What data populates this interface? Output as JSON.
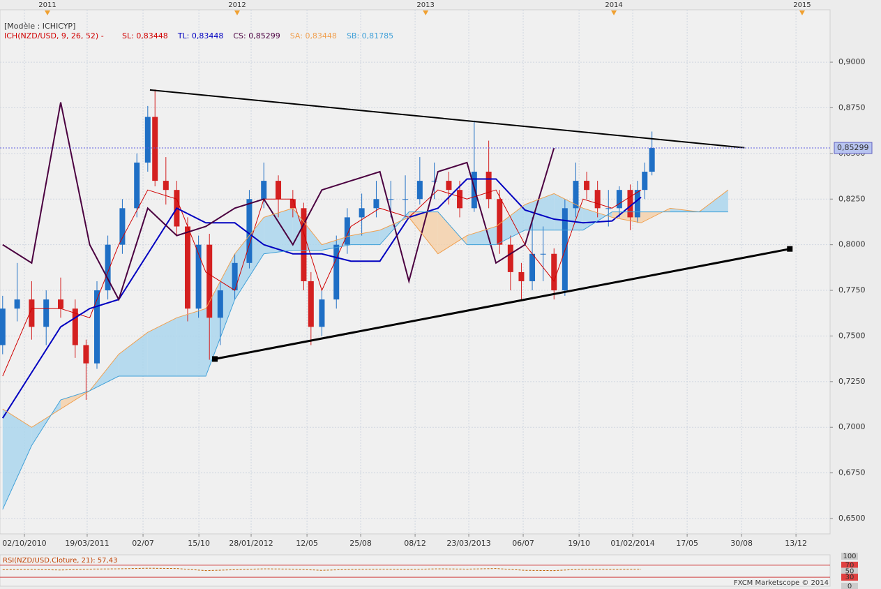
{
  "chart_data": {
    "type": "candlestick",
    "model": "[Modèle : ICHICYP]",
    "indicator": "ICH(NZD/USD, 9, 26, 52) -",
    "up_color": "#1f6fc5",
    "down_color": "#d42020",
    "xlim": [
      -6.73,
      222.1
    ],
    "ylim": [
      0.6416,
      0.9287
    ],
    "yticks": [
      {
        "value": 0.65,
        "label": "0,6500"
      },
      {
        "value": 0.675,
        "label": "0,6750"
      },
      {
        "value": 0.7,
        "label": "0,7000"
      },
      {
        "value": 0.725,
        "label": "0,7250"
      },
      {
        "value": 0.75,
        "label": "0,7500"
      },
      {
        "value": 0.775,
        "label": "0,7750"
      },
      {
        "value": 0.8,
        "label": "0,8000"
      },
      {
        "value": 0.825,
        "label": "0,8250"
      },
      {
        "value": 0.85,
        "label": "0,8500"
      },
      {
        "value": 0.875,
        "label": "0,8750"
      },
      {
        "value": 0.9,
        "label": "0,9000"
      }
    ],
    "xticks": [
      {
        "value": 0,
        "label": "02/10/2010"
      },
      {
        "value": 17.3,
        "label": "19/03/2011"
      },
      {
        "value": 32.7,
        "label": "02/07"
      },
      {
        "value": 48.1,
        "label": "15/10"
      },
      {
        "value": 62.5,
        "label": "28/01/2012"
      },
      {
        "value": 77.9,
        "label": "12/05"
      },
      {
        "value": 92.7,
        "label": "25/08"
      },
      {
        "value": 107.7,
        "label": "08/12"
      },
      {
        "value": 122.5,
        "label": "23/03/2013"
      },
      {
        "value": 137.5,
        "label": "06/07"
      },
      {
        "value": 152.9,
        "label": "19/10"
      },
      {
        "value": 167.7,
        "label": "01/02/2014"
      },
      {
        "value": 182.7,
        "label": "17/05"
      },
      {
        "value": 197.7,
        "label": "30/08"
      },
      {
        "value": 212.7,
        "label": "13/12"
      }
    ],
    "top_ticks": [
      {
        "value": 6.35,
        "label": "2011"
      },
      {
        "value": 58.65,
        "label": "2012"
      },
      {
        "value": 110.6,
        "label": "2013"
      },
      {
        "value": 162.5,
        "label": "2014"
      },
      {
        "value": 214.4,
        "label": "2015"
      }
    ],
    "grid": true,
    "x": [
      -6,
      -2,
      2,
      6,
      10,
      14,
      17,
      20,
      23,
      27,
      31,
      34,
      36,
      39,
      42,
      45,
      48,
      51,
      54,
      58,
      62,
      66,
      70,
      74,
      77,
      79,
      82,
      86,
      89,
      93,
      97,
      101,
      105,
      109,
      113,
      117,
      120,
      124,
      128,
      131,
      134,
      137,
      140,
      143,
      146,
      149,
      152,
      155,
      158,
      161,
      164,
      167,
      169,
      171,
      173
    ],
    "open": [
      0.745,
      0.765,
      0.77,
      0.755,
      0.77,
      0.765,
      0.745,
      0.735,
      0.775,
      0.8,
      0.82,
      0.845,
      0.87,
      0.835,
      0.83,
      0.81,
      0.765,
      0.8,
      0.76,
      0.775,
      0.79,
      0.825,
      0.835,
      0.825,
      0.82,
      0.78,
      0.755,
      0.77,
      0.8,
      0.815,
      0.82,
      0.825,
      0.825,
      0.825,
      0.835,
      0.835,
      0.83,
      0.82,
      0.84,
      0.825,
      0.8,
      0.785,
      0.78,
      0.795,
      0.795,
      0.775,
      0.82,
      0.835,
      0.83,
      0.82,
      0.82,
      0.83,
      0.815,
      0.83,
      0.84
    ],
    "high": [
      0.772,
      0.79,
      0.78,
      0.775,
      0.782,
      0.77,
      0.748,
      0.78,
      0.805,
      0.825,
      0.85,
      0.876,
      0.885,
      0.848,
      0.835,
      0.815,
      0.805,
      0.806,
      0.78,
      0.795,
      0.83,
      0.845,
      0.838,
      0.83,
      0.823,
      0.785,
      0.775,
      0.805,
      0.82,
      0.828,
      0.835,
      0.835,
      0.838,
      0.848,
      0.845,
      0.84,
      0.835,
      0.868,
      0.857,
      0.83,
      0.805,
      0.79,
      0.815,
      0.81,
      0.798,
      0.825,
      0.845,
      0.84,
      0.835,
      0.83,
      0.832,
      0.833,
      0.835,
      0.845,
      0.862
    ],
    "low": [
      0.74,
      0.758,
      0.748,
      0.745,
      0.76,
      0.738,
      0.715,
      0.732,
      0.77,
      0.795,
      0.815,
      0.84,
      0.832,
      0.822,
      0.805,
      0.758,
      0.76,
      0.737,
      0.745,
      0.77,
      0.787,
      0.82,
      0.815,
      0.815,
      0.775,
      0.745,
      0.75,
      0.765,
      0.795,
      0.805,
      0.815,
      0.815,
      0.815,
      0.822,
      0.825,
      0.822,
      0.815,
      0.818,
      0.82,
      0.795,
      0.775,
      0.77,
      0.775,
      0.78,
      0.77,
      0.772,
      0.815,
      0.825,
      0.815,
      0.81,
      0.815,
      0.808,
      0.812,
      0.825,
      0.838
    ],
    "close": [
      0.765,
      0.77,
      0.755,
      0.77,
      0.765,
      0.745,
      0.735,
      0.775,
      0.8,
      0.82,
      0.845,
      0.87,
      0.835,
      0.83,
      0.81,
      0.765,
      0.8,
      0.76,
      0.775,
      0.79,
      0.825,
      0.835,
      0.825,
      0.82,
      0.78,
      0.755,
      0.77,
      0.8,
      0.815,
      0.82,
      0.825,
      0.825,
      0.825,
      0.835,
      0.835,
      0.83,
      0.82,
      0.84,
      0.825,
      0.8,
      0.785,
      0.78,
      0.795,
      0.795,
      0.775,
      0.82,
      0.835,
      0.83,
      0.82,
      0.82,
      0.83,
      0.815,
      0.83,
      0.84,
      0.853
    ],
    "lines": {
      "x": [
        -6,
        2,
        10,
        18,
        26,
        34,
        42,
        50,
        58,
        66,
        74,
        82,
        90,
        98,
        106,
        114,
        122,
        130,
        138,
        146,
        154,
        162,
        170,
        178,
        186,
        194
      ],
      "series": [
        {
          "label": "SL: 0,83448",
          "color": "#d00000",
          "width": 1,
          "values": [
            0.728,
            0.765,
            0.765,
            0.76,
            0.8,
            0.83,
            0.825,
            0.785,
            0.775,
            0.825,
            0.825,
            0.775,
            0.81,
            0.82,
            0.815,
            0.83,
            0.825,
            0.83,
            0.8,
            0.78,
            0.825,
            0.82,
            0.83,
            null,
            null,
            null
          ]
        },
        {
          "label": "TL: 0,83448",
          "color": "#0000c0",
          "width": 2,
          "values": [
            0.705,
            0.73,
            0.755,
            0.765,
            0.77,
            0.795,
            0.82,
            0.812,
            0.812,
            0.8,
            0.795,
            0.795,
            0.791,
            0.791,
            0.815,
            0.82,
            0.836,
            0.836,
            0.819,
            0.814,
            0.812,
            0.813,
            0.826,
            null,
            null,
            null
          ]
        },
        {
          "label": "CS: 0,85299",
          "color": "#4b0040",
          "width": 2,
          "values": [
            0.8,
            0.79,
            0.878,
            0.8,
            0.77,
            0.82,
            0.805,
            0.81,
            0.82,
            0.825,
            0.8,
            0.83,
            0.835,
            0.84,
            0.78,
            0.84,
            0.845,
            0.79,
            0.8,
            0.853,
            null,
            null,
            null,
            null,
            null,
            null
          ]
        },
        {
          "label": "SA: 0,83448",
          "color": "#f0a050",
          "width": 1,
          "values": [
            0.71,
            0.7,
            0.71,
            0.72,
            0.74,
            0.752,
            0.76,
            0.765,
            0.795,
            0.815,
            0.82,
            0.8,
            0.805,
            0.808,
            0.815,
            0.795,
            0.805,
            0.81,
            0.822,
            0.828,
            0.82,
            0.815,
            0.812,
            0.82,
            0.818,
            0.83
          ]
        },
        {
          "label": "SB: 0,81785",
          "color": "#40a0d8",
          "width": 1,
          "values": [
            0.655,
            0.69,
            0.715,
            0.72,
            0.728,
            0.728,
            0.728,
            0.728,
            0.77,
            0.795,
            0.797,
            0.797,
            0.8,
            0.8,
            0.818,
            0.818,
            0.8,
            0.8,
            0.808,
            0.808,
            0.808,
            0.818,
            0.818,
            0.818,
            0.818,
            0.818
          ]
        }
      ]
    },
    "cloud_colors": [
      "#a8d4ee",
      "#f5cfa8"
    ],
    "trendlines": [
      {
        "x": [
          34.6,
          198.5
        ],
        "y": [
          0.8848,
          0.8531
        ],
        "width": 2,
        "markers": false
      },
      {
        "x": [
          52.5,
          211
        ],
        "y": [
          0.7374,
          0.7977
        ],
        "width": 3,
        "markers": true
      }
    ],
    "last_price": {
      "value": 0.85299,
      "label": "0,85299"
    },
    "rsi": {
      "label": "RSI(NZD/USD.Cloture, 21): 57,43",
      "ylim": [
        0,
        100
      ],
      "yticks": [
        100,
        70,
        50,
        30,
        0
      ],
      "levels": [
        70,
        30
      ],
      "x": [
        -6,
        2,
        10,
        18,
        26,
        34,
        42,
        50,
        58,
        66,
        74,
        82,
        90,
        98,
        106,
        114,
        122,
        130,
        138,
        146,
        154,
        162,
        170
      ],
      "values": [
        55,
        56,
        54,
        57,
        58,
        60,
        59,
        52,
        55,
        58,
        57,
        53,
        56,
        57,
        56,
        58,
        57,
        59,
        53,
        52,
        57,
        56,
        57
      ]
    },
    "footer": "FXCM Marketscope © 2014"
  }
}
